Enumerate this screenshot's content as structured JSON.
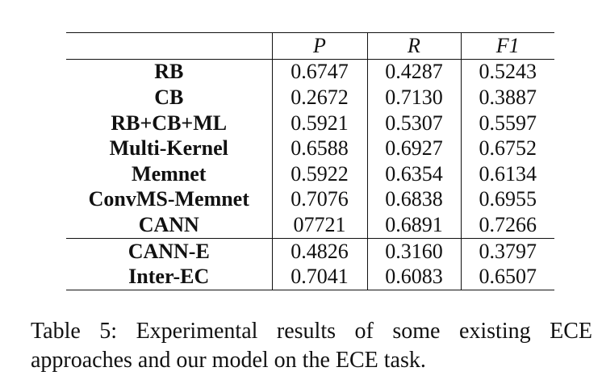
{
  "table": {
    "columns": [
      "",
      "P",
      "R",
      "F1"
    ],
    "rows": [
      {
        "model": "RB",
        "p": "0.6747",
        "r": "0.4287",
        "f1": "0.5243"
      },
      {
        "model": "CB",
        "p": "0.2672",
        "r": "0.7130",
        "f1": "0.3887"
      },
      {
        "model": "RB+CB+ML",
        "p": "0.5921",
        "r": "0.5307",
        "f1": "0.5597"
      },
      {
        "model": "Multi-Kernel",
        "p": "0.6588",
        "r": "0.6927",
        "f1": "0.6752"
      },
      {
        "model": "Memnet",
        "p": "0.5922",
        "r": "0.6354",
        "f1": "0.6134"
      },
      {
        "model": "ConvMS-Memnet",
        "p": "0.7076",
        "r": "0.6838",
        "f1": "0.6955"
      },
      {
        "model": "CANN",
        "p": "07721",
        "r": "0.6891",
        "f1": "0.7266"
      },
      {
        "model": "CANN-E",
        "p": "0.4826",
        "r": "0.3160",
        "f1": "0.3797"
      },
      {
        "model": "Inter-EC",
        "p": "0.7041",
        "r": "0.6083",
        "f1": "0.6507"
      }
    ]
  },
  "caption": "Table 5: Experimental results of some existing ECE approaches and our model on the ECE task."
}
